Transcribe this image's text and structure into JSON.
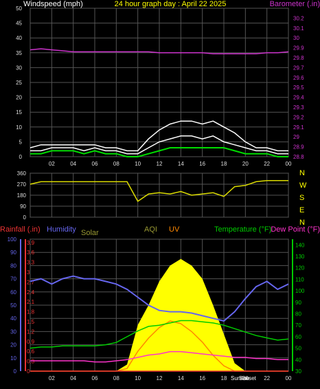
{
  "header": {
    "wind_label": "Windspeed (mph)",
    "title": "24 hour graph day : April 22 2025",
    "baro_label": "Barometer (.in)"
  },
  "legend": {
    "rainfall": "Rainfall (.in)",
    "humidity": "Humidity",
    "solar": "Solar",
    "aqi": "AQI",
    "uv": "UV",
    "temperature": "Temperature (°F)",
    "dew_point": "Dew Point (°F)"
  },
  "sun_labels": {
    "sunrise": "Sunrise",
    "sunset": "Sunset"
  },
  "colors": {
    "grid": "#555555",
    "wind": "#ffffff",
    "gust": "#ffffff",
    "wind_avg": "#00dd00",
    "barometer": "#cc33cc",
    "direction": "#dddd00",
    "humidity": "#6666ee",
    "temperature": "#00cc00",
    "dew_point": "#ff33cc",
    "solar": "#ffff00",
    "uv": "#ff8800",
    "rainfall": "#ee3333",
    "aqi": "#999933"
  },
  "x_ticks": [
    "02",
    "04",
    "06",
    "08",
    "10",
    "12",
    "14",
    "16",
    "18",
    "20",
    "22",
    "00"
  ],
  "chart_data": [
    {
      "type": "line",
      "title": "24 hour graph day : April 22 2025",
      "x": [
        0,
        1,
        2,
        3,
        4,
        5,
        6,
        7,
        8,
        9,
        10,
        11,
        12,
        13,
        14,
        15,
        16,
        17,
        18,
        19,
        20,
        21,
        22,
        23,
        24
      ],
      "y_left": {
        "label": "Windspeed (mph)",
        "ylim": [
          0,
          50
        ],
        "ticks": [
          0,
          5,
          10,
          15,
          20,
          25,
          30,
          35,
          40,
          45,
          50
        ]
      },
      "y_right": {
        "label": "Barometer (.in)",
        "ylim": [
          28.8,
          30.3
        ],
        "ticks": [
          "28.8",
          "28.9",
          "29",
          "29.1",
          "29.2",
          "29.3",
          "29.4",
          "29.5",
          "29.6",
          "29.7",
          "29.8",
          "29.9",
          "30",
          "30.1",
          "30.2"
        ]
      },
      "series": [
        {
          "name": "Barometer",
          "axis": "right",
          "values": [
            29.88,
            29.89,
            29.88,
            29.87,
            29.86,
            29.86,
            29.86,
            29.86,
            29.86,
            29.86,
            29.86,
            29.86,
            29.85,
            29.85,
            29.85,
            29.85,
            29.85,
            29.84,
            29.84,
            29.84,
            29.84,
            29.84,
            29.85,
            29.85,
            29.86
          ]
        },
        {
          "name": "Gust",
          "axis": "left",
          "values": [
            3,
            4,
            4,
            4,
            4,
            4,
            4,
            3,
            3,
            2,
            2,
            6,
            9,
            11,
            12,
            12,
            11,
            12,
            10,
            8,
            5,
            3,
            3,
            2,
            2
          ]
        },
        {
          "name": "Wind",
          "axis": "left",
          "values": [
            2,
            2,
            3,
            3,
            3,
            2,
            3,
            2,
            2,
            1,
            1,
            3,
            5,
            6,
            7,
            7,
            6,
            7,
            5,
            4,
            3,
            2,
            2,
            1,
            1
          ]
        },
        {
          "name": "Average",
          "axis": "left",
          "values": [
            1,
            1,
            2,
            2,
            2,
            1,
            2,
            1,
            1,
            0,
            0,
            1,
            2,
            3,
            3,
            3,
            3,
            3,
            3,
            2,
            1,
            1,
            1,
            0,
            0
          ]
        }
      ]
    },
    {
      "type": "scatter",
      "x": [
        0,
        1,
        2,
        3,
        4,
        5,
        6,
        7,
        8,
        9,
        10,
        11,
        12,
        13,
        14,
        15,
        16,
        17,
        18,
        19,
        20,
        21,
        22,
        23,
        24
      ],
      "y_left": {
        "ticks": [
          0,
          90,
          180,
          270,
          360
        ],
        "ylim": [
          0,
          360
        ]
      },
      "y_right": {
        "labels": [
          "N",
          "W",
          "S",
          "E",
          "N"
        ]
      },
      "series": [
        {
          "name": "Wind direction",
          "values": [
            270,
            290,
            290,
            290,
            290,
            290,
            290,
            290,
            290,
            290,
            130,
            190,
            200,
            190,
            210,
            180,
            190,
            200,
            170,
            250,
            260,
            290,
            300,
            300,
            300
          ]
        }
      ]
    },
    {
      "type": "line",
      "x": [
        0,
        1,
        2,
        3,
        4,
        5,
        6,
        7,
        8,
        9,
        10,
        11,
        12,
        13,
        14,
        15,
        16,
        17,
        18,
        19,
        20,
        21,
        22,
        23,
        24
      ],
      "y_humidity": {
        "label": "Humidity",
        "ylim": [
          0,
          100
        ],
        "ticks": [
          0,
          10,
          20,
          30,
          40,
          50,
          60,
          70,
          80,
          90,
          100
        ]
      },
      "y_rain": {
        "label": "Rainfall (.in)",
        "ylim": [
          0,
          4
        ],
        "ticks": [
          "0",
          "0.3",
          "0.6",
          "0.9",
          "1.2",
          "1.5",
          "1.8",
          "2.1",
          "2.4",
          "2.7",
          "3",
          "3.3",
          "3.6",
          "3.9"
        ]
      },
      "y_temp": {
        "label": "Temperature (°F)",
        "ylim": [
          30,
          145
        ],
        "ticks": [
          30,
          40,
          50,
          60,
          70,
          80,
          90,
          100,
          110,
          120,
          130,
          140
        ]
      },
      "series": [
        {
          "name": "Humidity",
          "axis": "humidity",
          "values": [
            68,
            70,
            66,
            70,
            72,
            70,
            70,
            68,
            66,
            62,
            56,
            50,
            46,
            45,
            45,
            44,
            42,
            40,
            38,
            45,
            55,
            64,
            68,
            62,
            66
          ]
        },
        {
          "name": "Temperature",
          "axis": "temp",
          "values": [
            50,
            51,
            51,
            52,
            52,
            52,
            52,
            53,
            55,
            60,
            65,
            69,
            70,
            72,
            74,
            74,
            73,
            72,
            70,
            67,
            64,
            61,
            59,
            57,
            58
          ]
        },
        {
          "name": "Dew Point",
          "axis": "temp",
          "values": [
            39,
            39,
            39,
            39,
            39,
            39,
            38,
            38,
            39,
            40,
            42,
            44,
            45,
            47,
            47,
            46,
            45,
            44,
            43,
            42,
            42,
            41,
            41,
            40,
            40
          ]
        },
        {
          "name": "Solar",
          "axis": "humidity",
          "values": [
            0,
            0,
            0,
            0,
            0,
            0,
            0,
            0,
            0,
            5,
            35,
            50,
            68,
            80,
            85,
            80,
            70,
            50,
            28,
            6,
            0,
            0,
            0,
            0,
            0
          ]
        },
        {
          "name": "UV",
          "axis": "humidity",
          "values": [
            0,
            0,
            0,
            0,
            0,
            0,
            0,
            0,
            0,
            2,
            15,
            25,
            33,
            38,
            36,
            30,
            22,
            12,
            4,
            0,
            0,
            0,
            0,
            0,
            0
          ]
        },
        {
          "name": "Rainfall",
          "axis": "rain",
          "values": [
            0,
            0,
            0,
            0,
            0,
            0,
            0,
            0,
            0,
            0,
            0,
            0,
            0,
            0,
            0,
            0,
            0,
            0,
            0,
            0,
            0,
            0,
            0,
            0,
            0
          ]
        }
      ]
    }
  ]
}
